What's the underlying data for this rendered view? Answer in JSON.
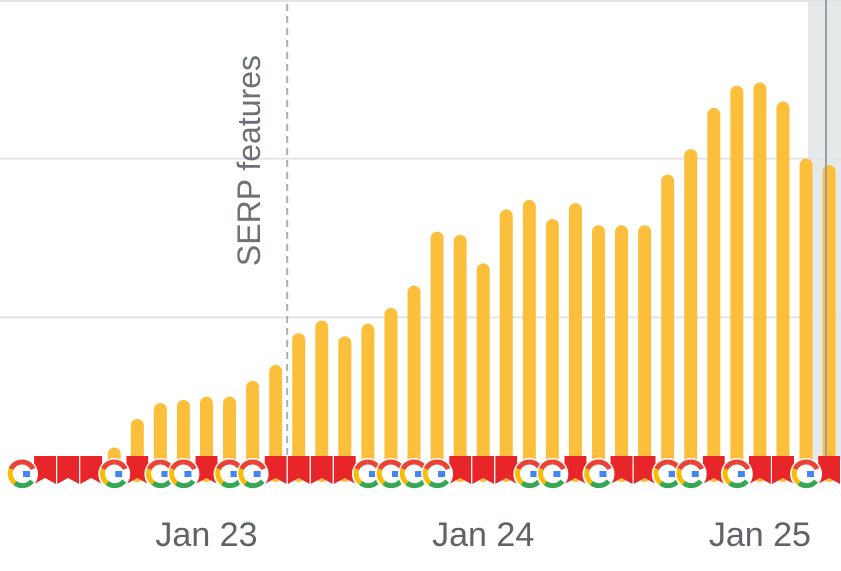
{
  "chart_data": {
    "type": "bar",
    "title": "",
    "xlabel": "",
    "ylabel": "",
    "x_tick_labels": [
      "Jan 23",
      "Jan 24",
      "Jan 25"
    ],
    "x_tick_bar_index": [
      8,
      20,
      32
    ],
    "values": [
      0,
      0,
      0,
      0,
      9,
      18,
      23,
      24,
      25,
      25,
      30,
      35,
      45,
      49,
      44,
      48,
      53,
      60,
      77,
      76,
      67,
      84,
      87,
      81,
      86,
      79,
      79,
      79,
      95,
      103,
      116,
      123,
      124,
      118,
      100,
      98
    ],
    "ylim": [
      0,
      150
    ],
    "y_gridlines": [
      50,
      100
    ],
    "grid": true,
    "bar_color": "#fbbf3c",
    "annotations": [
      {
        "label": "SERP features",
        "at_bar": 11.5,
        "style": "dashed-vertical-line"
      }
    ],
    "highlight_last_bar": true,
    "event_markers": {
      "description_icons": [
        "google-update-icon",
        "red-flag-icon"
      ],
      "google_update_at_bars": [
        0,
        4,
        6,
        7,
        9,
        10,
        15,
        16,
        17,
        18,
        22,
        23,
        25,
        28,
        29,
        31,
        34
      ],
      "flag_at_bars": [
        1,
        2,
        3,
        5,
        8,
        11,
        12,
        13,
        14,
        19,
        20,
        21,
        24,
        26,
        27,
        30,
        32,
        33,
        35
      ]
    },
    "colors": {
      "grid": "#e3e3e8",
      "annotation_line": "#a9b0b4",
      "annotation_text": "#6b7177",
      "axis_text": "#5f6368",
      "flag": "#e8262a",
      "highlight_band": "#e6e9ea"
    }
  }
}
